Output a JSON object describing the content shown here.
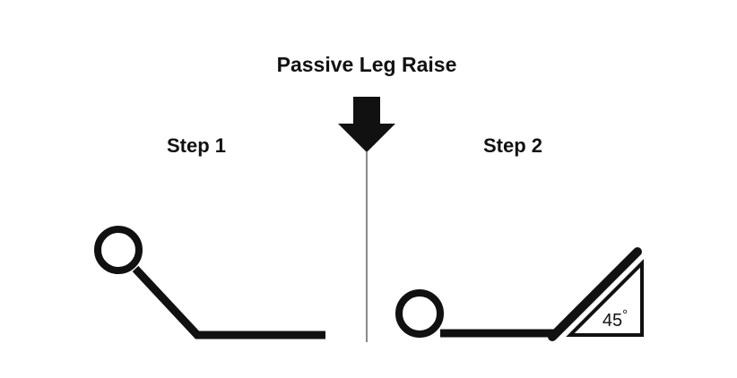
{
  "title": "Passive Leg Raise",
  "step1": {
    "label": "Step 1"
  },
  "step2": {
    "label": "Step 2",
    "angle_value": "45",
    "angle_unit": "°"
  },
  "colors": {
    "ink": "#111111",
    "divider": "#8a8a8a",
    "background": "#ffffff"
  }
}
